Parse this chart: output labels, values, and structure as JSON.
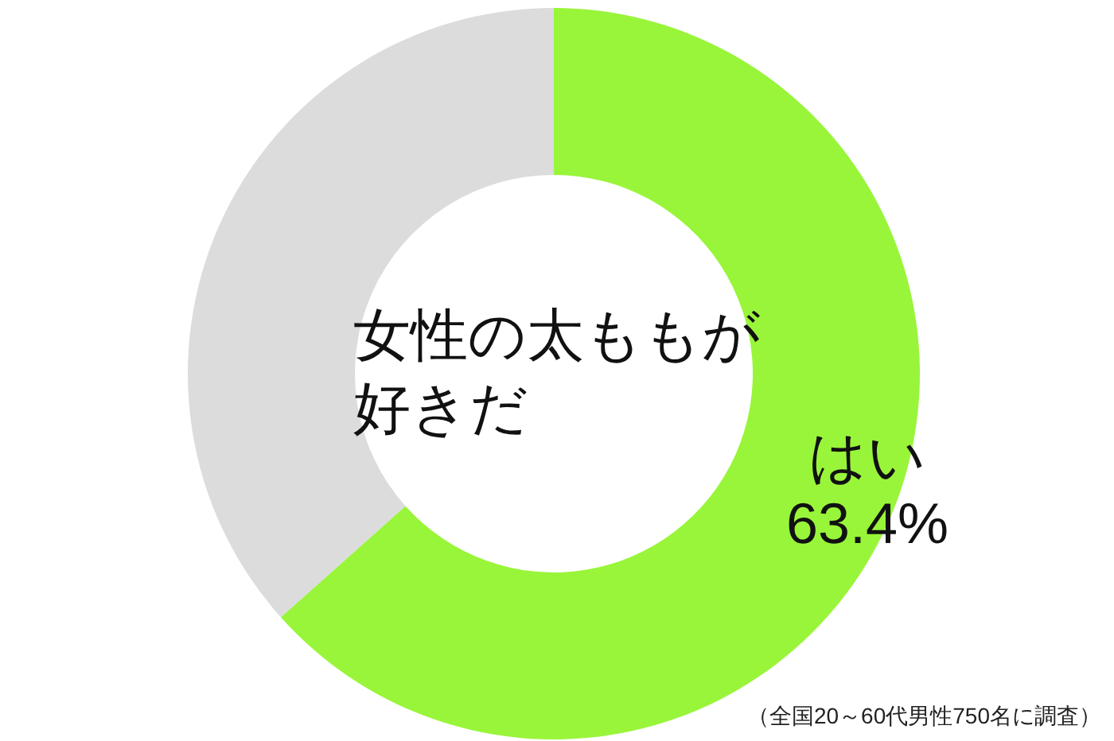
{
  "chart_data": {
    "type": "donut",
    "title": "女性の太ももが好きだ",
    "categories": [
      "はい",
      null
    ],
    "values": [
      63.4,
      36.6
    ],
    "colors": [
      "#99f53a",
      "#dcdcdc"
    ],
    "value_labels": [
      "63.4%",
      null
    ],
    "annotations": [
      "（全国20～60代男性750名に調査）"
    ]
  }
}
